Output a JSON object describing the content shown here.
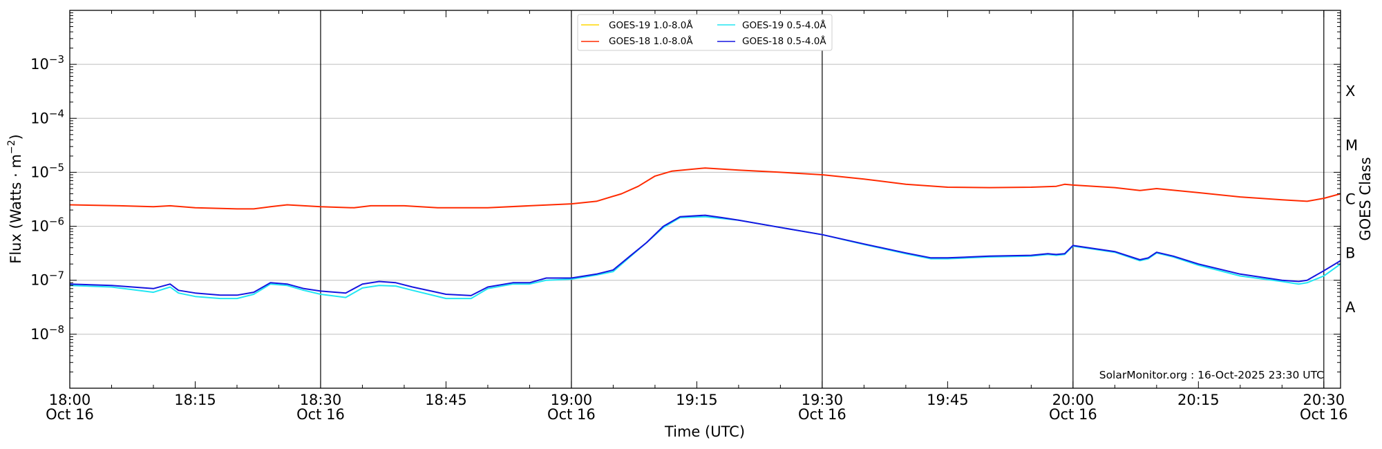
{
  "chart_data": {
    "type": "line",
    "xlabel": "Time (UTC)",
    "ylabel": "Flux (Watts · m",
    "ylabel_sup": "−2",
    "ylabel_close": ")",
    "ylabel_right": "GOES Class",
    "y_scale": "log",
    "ylim": [
      1e-09,
      0.01
    ],
    "xlim": [
      "18:00",
      "20:32"
    ],
    "grid": "horizontal at each decade; vertical black lines every 30 min",
    "y_ticks": [
      {
        "value": 1e-08,
        "base": "10",
        "exp": "−8"
      },
      {
        "value": 1e-07,
        "base": "10",
        "exp": "−7"
      },
      {
        "value": 1e-06,
        "base": "10",
        "exp": "−6"
      },
      {
        "value": 1e-05,
        "base": "10",
        "exp": "−5"
      },
      {
        "value": 0.0001,
        "base": "10",
        "exp": "−4"
      },
      {
        "value": 0.001,
        "base": "10",
        "exp": "−3"
      }
    ],
    "x_ticks": [
      {
        "time": "18:00",
        "label": "18:00",
        "date": "Oct 16"
      },
      {
        "time": "18:15",
        "label": "18:15",
        "date": ""
      },
      {
        "time": "18:30",
        "label": "18:30",
        "date": "Oct 16"
      },
      {
        "time": "18:45",
        "label": "18:45",
        "date": ""
      },
      {
        "time": "19:00",
        "label": "19:00",
        "date": "Oct 16"
      },
      {
        "time": "19:15",
        "label": "19:15",
        "date": ""
      },
      {
        "time": "19:30",
        "label": "19:30",
        "date": "Oct 16"
      },
      {
        "time": "19:45",
        "label": "19:45",
        "date": ""
      },
      {
        "time": "20:00",
        "label": "20:00",
        "date": "Oct 16"
      },
      {
        "time": "20:15",
        "label": "20:15",
        "date": ""
      },
      {
        "time": "20:30",
        "label": "20:30",
        "date": "Oct 16"
      }
    ],
    "vertical_lines": [
      "18:30",
      "19:00",
      "19:30",
      "20:00",
      "20:30"
    ],
    "goes_classes": [
      {
        "label": "A",
        "value": 3.16e-08
      },
      {
        "label": "B",
        "value": 3.16e-07
      },
      {
        "label": "C",
        "value": 3.16e-06
      },
      {
        "label": "M",
        "value": 3.16e-05
      },
      {
        "label": "X",
        "value": 0.000316
      }
    ],
    "watermark": "SolarMonitor.org : 16-Oct-2025 23:30 UTC",
    "legend_position": "top-center",
    "series": [
      {
        "name": "GOES-19 1.0-8.0Å",
        "color": "#ffd700",
        "x": [],
        "y": []
      },
      {
        "name": "GOES-18 1.0-8.0Å",
        "color": "#ff2a00",
        "x": [
          "18:00",
          "18:06",
          "18:10",
          "18:12",
          "18:15",
          "18:20",
          "18:22",
          "18:24",
          "18:26",
          "18:28",
          "18:30",
          "18:34",
          "18:36",
          "18:40",
          "18:44",
          "18:50",
          "18:55",
          "19:00",
          "19:03",
          "19:06",
          "19:08",
          "19:10",
          "19:12",
          "19:16",
          "19:20",
          "19:25",
          "19:30",
          "19:35",
          "19:40",
          "19:45",
          "19:50",
          "19:55",
          "19:58",
          "19:59",
          "20:00",
          "20:05",
          "20:08",
          "20:10",
          "20:15",
          "20:20",
          "20:25",
          "20:28",
          "20:30",
          "20:32"
        ],
        "y": [
          2.5e-06,
          2.4e-06,
          2.3e-06,
          2.4e-06,
          2.2e-06,
          2.1e-06,
          2.1e-06,
          2.3e-06,
          2.5e-06,
          2.4e-06,
          2.3e-06,
          2.2e-06,
          2.4e-06,
          2.4e-06,
          2.2e-06,
          2.2e-06,
          2.4e-06,
          2.6e-06,
          2.9e-06,
          4e-06,
          5.5e-06,
          8.5e-06,
          1.05e-05,
          1.2e-05,
          1.1e-05,
          1e-05,
          9e-06,
          7.5e-06,
          6e-06,
          5.3e-06,
          5.2e-06,
          5.3e-06,
          5.5e-06,
          6e-06,
          5.8e-06,
          5.2e-06,
          4.6e-06,
          5e-06,
          4.2e-06,
          3.5e-06,
          3.1e-06,
          2.9e-06,
          3.3e-06,
          4e-06
        ]
      },
      {
        "name": "GOES-19 0.5-4.0Å",
        "color": "#22e6f2",
        "x": [
          "18:00",
          "18:05",
          "18:10",
          "18:12",
          "18:13",
          "18:15",
          "18:18",
          "18:20",
          "18:22",
          "18:24",
          "18:26",
          "18:28",
          "18:30",
          "18:33",
          "18:35",
          "18:37",
          "18:39",
          "18:41",
          "18:45",
          "18:48",
          "18:50",
          "18:53",
          "18:55",
          "18:57",
          "19:00",
          "19:03",
          "19:05",
          "19:07",
          "19:09",
          "19:11",
          "19:13",
          "19:16",
          "19:18",
          "19:20",
          "19:25",
          "19:30",
          "19:35",
          "19:40",
          "19:43",
          "19:45",
          "19:50",
          "19:55",
          "19:57",
          "19:58",
          "19:59",
          "20:00",
          "20:05",
          "20:08",
          "20:09",
          "20:10",
          "20:12",
          "20:15",
          "20:20",
          "20:25",
          "20:27",
          "20:28",
          "20:30",
          "20:32"
        ],
        "y": [
          8e-08,
          7.5e-08,
          6e-08,
          7.5e-08,
          5.8e-08,
          5e-08,
          4.6e-08,
          4.6e-08,
          5.5e-08,
          8.5e-08,
          8e-08,
          6.5e-08,
          5.5e-08,
          4.8e-08,
          7.2e-08,
          8e-08,
          7.8e-08,
          6.5e-08,
          4.6e-08,
          4.6e-08,
          7e-08,
          8.5e-08,
          8.5e-08,
          1e-07,
          1.05e-07,
          1.25e-07,
          1.45e-07,
          2.7e-07,
          5e-07,
          9.5e-07,
          1.45e-06,
          1.5e-06,
          1.4e-06,
          1.3e-06,
          9.5e-07,
          7e-07,
          4.6e-07,
          3.1e-07,
          2.5e-07,
          2.5e-07,
          2.7e-07,
          2.8e-07,
          3e-07,
          2.9e-07,
          3e-07,
          4.3e-07,
          3.3e-07,
          2.3e-07,
          2.5e-07,
          3.2e-07,
          2.7e-07,
          1.9e-07,
          1.2e-07,
          9.5e-08,
          8.5e-08,
          9e-08,
          1.2e-07,
          2e-07
        ]
      },
      {
        "name": "GOES-18 0.5-4.0Å",
        "color": "#1515e0",
        "x": [
          "18:00",
          "18:05",
          "18:10",
          "18:12",
          "18:13",
          "18:15",
          "18:18",
          "18:20",
          "18:22",
          "18:24",
          "18:26",
          "18:28",
          "18:30",
          "18:33",
          "18:35",
          "18:37",
          "18:39",
          "18:41",
          "18:45",
          "18:48",
          "18:50",
          "18:53",
          "18:55",
          "18:57",
          "19:00",
          "19:03",
          "19:05",
          "19:07",
          "19:09",
          "19:11",
          "19:13",
          "19:16",
          "19:18",
          "19:20",
          "19:25",
          "19:30",
          "19:35",
          "19:40",
          "19:43",
          "19:45",
          "19:50",
          "19:55",
          "19:57",
          "19:58",
          "19:59",
          "20:00",
          "20:05",
          "20:08",
          "20:09",
          "20:10",
          "20:12",
          "20:15",
          "20:20",
          "20:25",
          "20:27",
          "20:28",
          "20:30",
          "20:32"
        ],
        "y": [
          8.5e-08,
          8e-08,
          7e-08,
          8.5e-08,
          6.5e-08,
          5.8e-08,
          5.3e-08,
          5.3e-08,
          6e-08,
          9e-08,
          8.5e-08,
          7e-08,
          6.3e-08,
          5.8e-08,
          8.5e-08,
          9.5e-08,
          9e-08,
          7.5e-08,
          5.5e-08,
          5.2e-08,
          7.5e-08,
          9e-08,
          9e-08,
          1.1e-07,
          1.1e-07,
          1.3e-07,
          1.55e-07,
          2.8e-07,
          5e-07,
          1e-06,
          1.5e-06,
          1.6e-06,
          1.45e-06,
          1.3e-06,
          9.5e-07,
          7e-07,
          4.7e-07,
          3.2e-07,
          2.6e-07,
          2.6e-07,
          2.8e-07,
          2.9e-07,
          3.1e-07,
          3e-07,
          3.1e-07,
          4.4e-07,
          3.4e-07,
          2.4e-07,
          2.6e-07,
          3.3e-07,
          2.8e-07,
          2e-07,
          1.3e-07,
          1e-07,
          9.5e-08,
          1e-07,
          1.5e-07,
          2.3e-07
        ]
      }
    ]
  }
}
